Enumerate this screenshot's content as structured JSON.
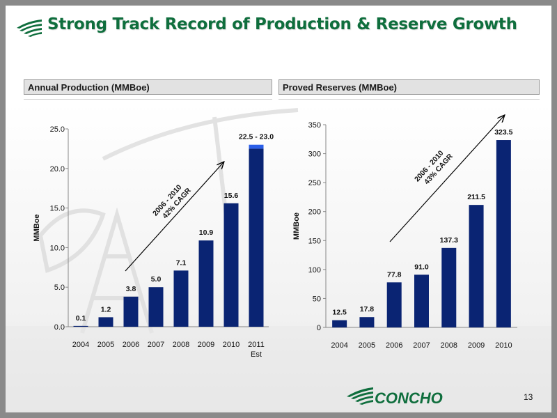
{
  "title": "Strong Track Record of Production & Reserve Growth",
  "panels": {
    "left_header": "Annual Production (MMBoe)",
    "right_header": "Proved Reserves (MMBoe)"
  },
  "brand": {
    "name": "CONCHO",
    "title_color": "#0f6e3d",
    "bar_color": "#0a2473",
    "highlight_color": "#2a5ee8"
  },
  "page_number": "13",
  "chart_data": [
    {
      "type": "bar",
      "id": "production",
      "title": "Annual Production (MMBoe)",
      "categories": [
        "2004",
        "2005",
        "2006",
        "2007",
        "2008",
        "2009",
        "2010",
        "2011"
      ],
      "category_sublabels": [
        "",
        "",
        "",
        "",
        "",
        "",
        "",
        "Est"
      ],
      "values": [
        0.1,
        1.2,
        3.8,
        5.0,
        7.1,
        10.9,
        15.6,
        22.5
      ],
      "value_labels": [
        "0.1",
        "1.2",
        "3.8",
        "5.0",
        "7.1",
        "10.9",
        "15.6",
        "22.5 - 23.0"
      ],
      "range_high": [
        null,
        null,
        null,
        null,
        null,
        null,
        null,
        23.0
      ],
      "ylabel": "MMBoe",
      "xlabel": "",
      "ylim": [
        0,
        25
      ],
      "yticks": [
        "0.0",
        "5.0",
        "10.0",
        "15.0",
        "20.0",
        "25.0"
      ],
      "ytick_values": [
        0,
        5,
        10,
        15,
        20,
        25
      ],
      "annotation": {
        "line1": "2006 - 2010",
        "line2": "42% CAGR"
      },
      "grid": false,
      "legend": "none"
    },
    {
      "type": "bar",
      "id": "reserves",
      "title": "Proved Reserves (MMBoe)",
      "categories": [
        "2004",
        "2005",
        "2006",
        "2007",
        "2008",
        "2009",
        "2010"
      ],
      "values": [
        12.5,
        17.8,
        77.8,
        91.0,
        137.3,
        211.5,
        323.5
      ],
      "value_labels": [
        "12.5",
        "17.8",
        "77.8",
        "91.0",
        "137.3",
        "211.5",
        "323.5"
      ],
      "ylabel": "MMBoe",
      "xlabel": "",
      "ylim": [
        0,
        350
      ],
      "yticks": [
        "0",
        "50",
        "100",
        "150",
        "200",
        "250",
        "300",
        "350"
      ],
      "ytick_values": [
        0,
        50,
        100,
        150,
        200,
        250,
        300,
        350
      ],
      "annotation": {
        "line1": "2006 - 2010",
        "line2": "43% CAGR"
      },
      "grid": false,
      "legend": "none"
    }
  ]
}
